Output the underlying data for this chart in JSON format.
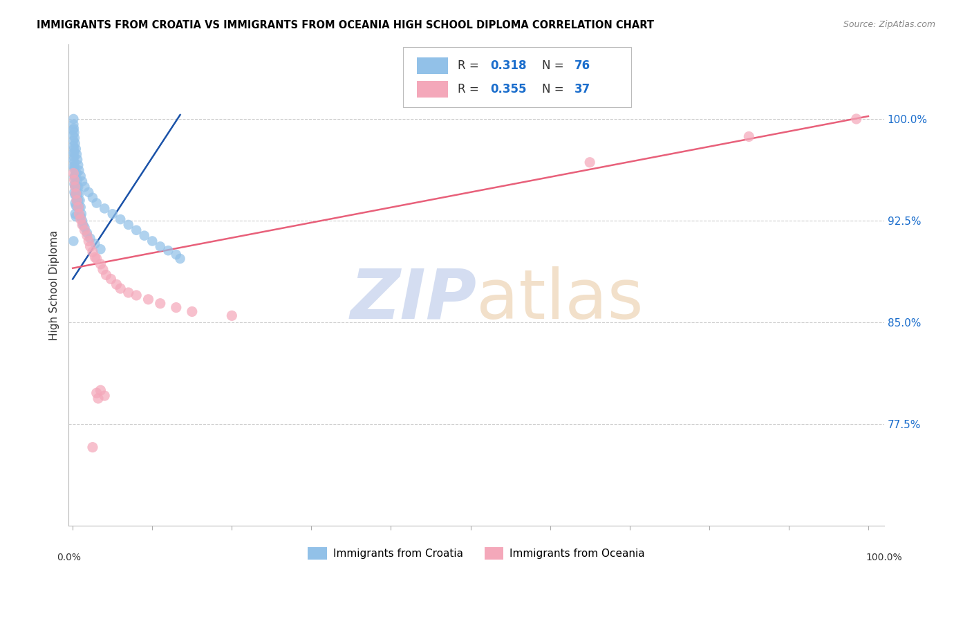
{
  "title": "IMMIGRANTS FROM CROATIA VS IMMIGRANTS FROM OCEANIA HIGH SCHOOL DIPLOMA CORRELATION CHART",
  "source": "Source: ZipAtlas.com",
  "ylabel": "High School Diploma",
  "ytick_values": [
    0.775,
    0.85,
    0.925,
    1.0
  ],
  "ytick_labels": [
    "77.5%",
    "85.0%",
    "92.5%",
    "100.0%"
  ],
  "xlim": [
    -0.005,
    1.02
  ],
  "ylim": [
    0.7,
    1.055
  ],
  "color_blue_scatter": "#92c1e8",
  "color_blue_line": "#1a52a8",
  "color_pink_scatter": "#f4a8ba",
  "color_pink_line": "#e8607a",
  "color_r_value": "#1a6dcc",
  "watermark_text": "ZIPatlas",
  "watermark_color": "#cdd8ef",
  "grid_color": "#cccccc",
  "background_color": "#ffffff",
  "blue_line_x": [
    0.0,
    0.135
  ],
  "blue_line_y": [
    0.882,
    1.003
  ],
  "pink_line_x": [
    0.0,
    1.0
  ],
  "pink_line_y": [
    0.89,
    1.002
  ],
  "croatia_x": [
    0.0005,
    0.0005,
    0.001,
    0.001,
    0.001,
    0.001,
    0.001,
    0.0015,
    0.0015,
    0.002,
    0.002,
    0.002,
    0.002,
    0.002,
    0.0025,
    0.0025,
    0.003,
    0.003,
    0.003,
    0.003,
    0.0035,
    0.0035,
    0.004,
    0.004,
    0.004,
    0.005,
    0.005,
    0.005,
    0.006,
    0.006,
    0.006,
    0.007,
    0.007,
    0.008,
    0.008,
    0.009,
    0.01,
    0.01,
    0.011,
    0.012,
    0.013,
    0.015,
    0.018,
    0.022,
    0.028,
    0.035,
    0.001,
    0.001,
    0.0015,
    0.002,
    0.0025,
    0.003,
    0.004,
    0.005,
    0.006,
    0.007,
    0.008,
    0.01,
    0.012,
    0.015,
    0.02,
    0.025,
    0.03,
    0.04,
    0.05,
    0.06,
    0.07,
    0.08,
    0.09,
    0.1,
    0.11,
    0.12,
    0.13,
    0.135,
    0.001,
    0.002
  ],
  "croatia_y": [
    0.992,
    0.988,
    0.984,
    0.98,
    0.975,
    0.97,
    0.965,
    0.978,
    0.972,
    0.968,
    0.963,
    0.957,
    0.952,
    0.946,
    0.965,
    0.958,
    0.95,
    0.944,
    0.938,
    0.93,
    0.96,
    0.952,
    0.944,
    0.936,
    0.928,
    0.96,
    0.95,
    0.94,
    0.955,
    0.945,
    0.935,
    0.95,
    0.94,
    0.945,
    0.935,
    0.94,
    0.935,
    0.928,
    0.93,
    0.925,
    0.922,
    0.92,
    0.916,
    0.912,
    0.908,
    0.904,
    1.0,
    0.996,
    0.993,
    0.99,
    0.986,
    0.982,
    0.978,
    0.974,
    0.97,
    0.966,
    0.962,
    0.958,
    0.954,
    0.95,
    0.946,
    0.942,
    0.938,
    0.934,
    0.93,
    0.926,
    0.922,
    0.918,
    0.914,
    0.91,
    0.906,
    0.903,
    0.9,
    0.897,
    0.91,
    0.975
  ],
  "oceania_x": [
    0.001,
    0.002,
    0.003,
    0.004,
    0.005,
    0.007,
    0.008,
    0.01,
    0.012,
    0.015,
    0.018,
    0.02,
    0.022,
    0.025,
    0.028,
    0.03,
    0.035,
    0.038,
    0.042,
    0.048,
    0.055,
    0.06,
    0.07,
    0.08,
    0.095,
    0.11,
    0.13,
    0.15,
    0.2,
    0.025,
    0.03,
    0.032,
    0.035,
    0.04,
    0.65,
    0.85,
    0.985
  ],
  "oceania_y": [
    0.96,
    0.955,
    0.95,
    0.945,
    0.94,
    0.935,
    0.93,
    0.926,
    0.922,
    0.918,
    0.914,
    0.91,
    0.906,
    0.902,
    0.898,
    0.897,
    0.893,
    0.889,
    0.885,
    0.882,
    0.878,
    0.875,
    0.872,
    0.87,
    0.867,
    0.864,
    0.861,
    0.858,
    0.855,
    0.758,
    0.798,
    0.794,
    0.8,
    0.796,
    0.968,
    0.987,
    1.0
  ],
  "legend_r1": "0.318",
  "legend_n1": "76",
  "legend_r2": "0.355",
  "legend_n2": "37"
}
